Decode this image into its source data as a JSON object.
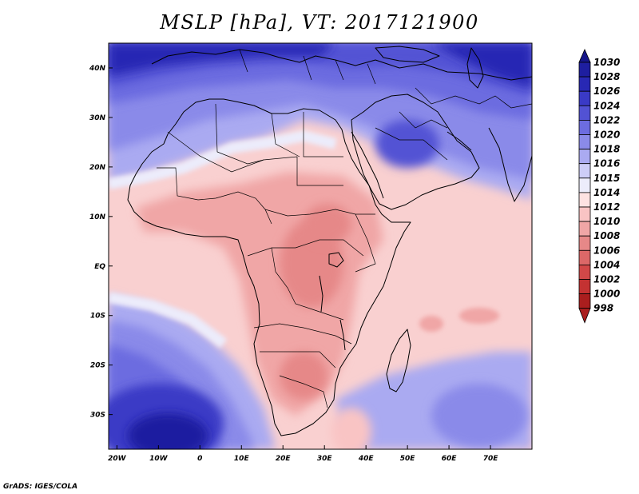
{
  "title": "MSLP [hPa], VT: 2017121900",
  "credit": "GrADS: IGES/COLA",
  "map": {
    "lon_range": [
      -22,
      80
    ],
    "lat_range": [
      -37,
      45
    ],
    "lat_ticks": [
      {
        "value": 40,
        "label": "40N"
      },
      {
        "value": 30,
        "label": "30N"
      },
      {
        "value": 20,
        "label": "20N"
      },
      {
        "value": 10,
        "label": "10N"
      },
      {
        "value": 0,
        "label": "EQ"
      },
      {
        "value": -10,
        "label": "10S"
      },
      {
        "value": -20,
        "label": "20S"
      },
      {
        "value": -30,
        "label": "30S"
      }
    ],
    "lon_ticks": [
      {
        "value": -20,
        "label": "20W"
      },
      {
        "value": -10,
        "label": "10W"
      },
      {
        "value": 0,
        "label": "0"
      },
      {
        "value": 10,
        "label": "10E"
      },
      {
        "value": 20,
        "label": "20E"
      },
      {
        "value": 30,
        "label": "30E"
      },
      {
        "value": 40,
        "label": "40E"
      },
      {
        "value": 50,
        "label": "50E"
      },
      {
        "value": 60,
        "label": "60E"
      },
      {
        "value": 70,
        "label": "70E"
      }
    ]
  },
  "colorbar": {
    "levels": [
      {
        "label": "1030",
        "color": "#16168a"
      },
      {
        "label": "1028",
        "color": "#1e1ea0"
      },
      {
        "label": "1026",
        "color": "#2828b4"
      },
      {
        "label": "1024",
        "color": "#3a3ac6"
      },
      {
        "label": "1022",
        "color": "#5252d4"
      },
      {
        "label": "1020",
        "color": "#6c6ce0"
      },
      {
        "label": "1018",
        "color": "#8a8ae9"
      },
      {
        "label": "1016",
        "color": "#aaaaf1"
      },
      {
        "label": "1015",
        "color": "#cdcdf7"
      },
      {
        "label": "1014",
        "color": "#ececfb"
      },
      {
        "label": "1012",
        "color": "#fde2e2"
      },
      {
        "label": "1010",
        "color": "#f9c4c4"
      },
      {
        "label": "1008",
        "color": "#f0a6a6"
      },
      {
        "label": "1006",
        "color": "#e68888"
      },
      {
        "label": "1004",
        "color": "#dc6868"
      },
      {
        "label": "1002",
        "color": "#d24848"
      },
      {
        "label": "1000",
        "color": "#c43232"
      },
      {
        "label": "998",
        "color": "#aa1e1e"
      }
    ]
  }
}
